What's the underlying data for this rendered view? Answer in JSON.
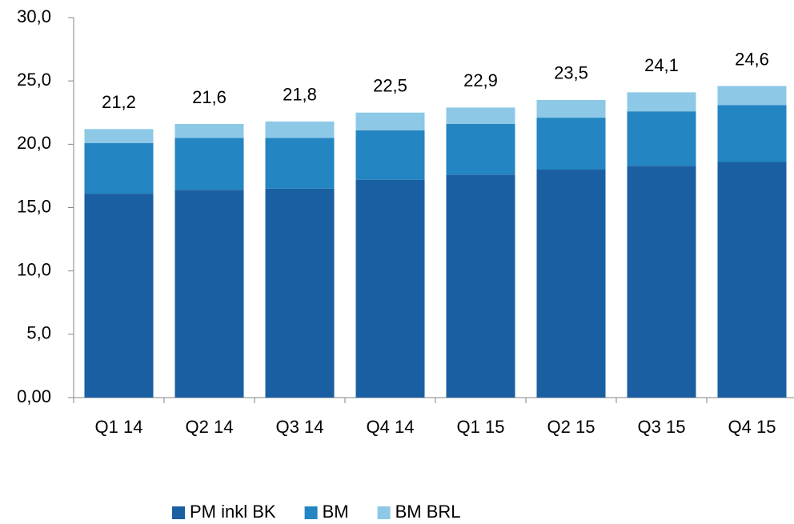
{
  "chart_data": {
    "type": "stacked-bar",
    "categories": [
      "Q1 14",
      "Q2 14",
      "Q3 14",
      "Q4 14",
      "Q1 15",
      "Q2 15",
      "Q3 15",
      "Q4 15"
    ],
    "series": [
      {
        "name": "PM inkl BK",
        "color": "#1a5fa2",
        "values": [
          16.1,
          16.4,
          16.5,
          17.2,
          17.6,
          18.0,
          18.3,
          18.6
        ]
      },
      {
        "name": "BM",
        "color": "#2385c1",
        "values": [
          4.0,
          4.1,
          4.0,
          3.9,
          4.0,
          4.1,
          4.3,
          4.5
        ]
      },
      {
        "name": "BM BRL",
        "color": "#8dc8e6",
        "values": [
          1.1,
          1.1,
          1.3,
          1.4,
          1.3,
          1.4,
          1.5,
          1.5
        ]
      }
    ],
    "total_labels": [
      "21,2",
      "21,6",
      "21,8",
      "22,5",
      "22,9",
      "23,5",
      "24,1",
      "24,6"
    ],
    "ylim": [
      0,
      30
    ],
    "yticks": [
      {
        "value": 0,
        "label": "0,00"
      },
      {
        "value": 5,
        "label": "5,0"
      },
      {
        "value": 10,
        "label": "10,0"
      },
      {
        "value": 15,
        "label": "15,0"
      },
      {
        "value": 20,
        "label": "20,0"
      },
      {
        "value": 25,
        "label": "25,0"
      },
      {
        "value": 30,
        "label": "30,0"
      }
    ],
    "legend": "bottom"
  }
}
